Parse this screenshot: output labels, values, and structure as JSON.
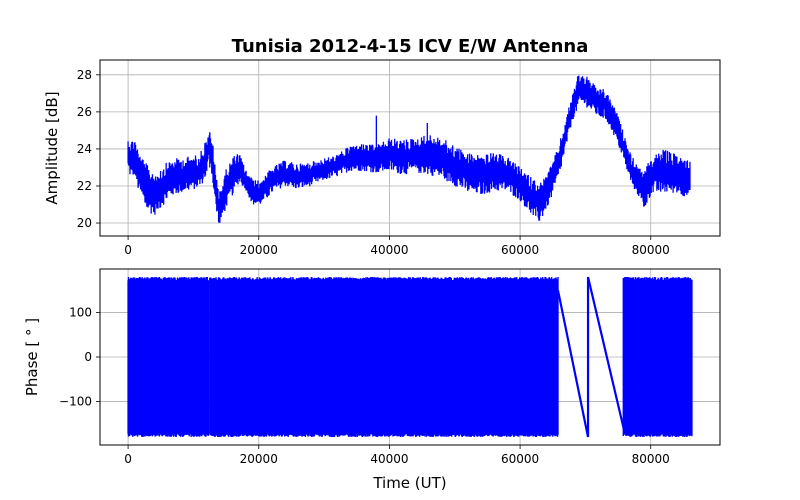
{
  "chart_data": [
    {
      "type": "line",
      "title": "Tunisia 2012-4-15 ICV   E/W Antenna",
      "xlabel": "",
      "ylabel": "Amplitude [dB]",
      "xlim": [
        -4300,
        90600
      ],
      "ylim": [
        19.3,
        28.8
      ],
      "xticks": [
        0,
        20000,
        40000,
        60000,
        80000
      ],
      "yticks": [
        20,
        22,
        24,
        26,
        28
      ],
      "grid": true,
      "color": "#0000ff",
      "series": [
        {
          "x": [
            0,
            500,
            1000,
            1500,
            2000,
            2500,
            3000,
            4000,
            5000,
            6000,
            7000,
            8000,
            9000,
            10000,
            11000,
            12000,
            12500,
            13000,
            13500,
            14000,
            14500,
            15000,
            16000,
            17000,
            18000,
            19000,
            20000,
            21000,
            22000,
            24000,
            26000,
            28000,
            30000,
            32000,
            34000,
            36000,
            38000,
            40000,
            42000,
            44000,
            46000,
            48000,
            50000,
            52000,
            54000,
            56000,
            58000,
            60000,
            62000,
            63000,
            64000,
            65000,
            66000,
            67000,
            68000,
            69000,
            70000,
            71000,
            72000,
            73000,
            74000,
            75000,
            76000,
            77000,
            78000,
            79000,
            80000,
            82000,
            84000,
            86000
          ],
          "low": [
            22.8,
            22.3,
            22.6,
            21.8,
            21.4,
            20.8,
            20.6,
            20.4,
            20.8,
            21.2,
            21.5,
            21.6,
            21.7,
            21.8,
            21.9,
            22.5,
            23.6,
            22.0,
            20.5,
            19.8,
            20.3,
            20.8,
            21.5,
            22.2,
            21.8,
            21.0,
            20.9,
            21.2,
            21.6,
            22.0,
            21.8,
            22.0,
            22.3,
            22.5,
            22.8,
            22.8,
            22.7,
            22.8,
            22.6,
            22.7,
            22.6,
            22.4,
            22.0,
            21.6,
            21.5,
            21.7,
            21.7,
            21.2,
            20.3,
            20.0,
            20.7,
            21.5,
            22.5,
            24.0,
            25.5,
            26.3,
            26.3,
            26.0,
            25.7,
            25.6,
            25.0,
            24.2,
            23.2,
            22.1,
            21.5,
            20.7,
            21.5,
            21.6,
            21.6,
            21.3
          ],
          "high": [
            24.6,
            24.5,
            24.7,
            24.0,
            23.6,
            23.4,
            23.1,
            22.8,
            23.0,
            23.3,
            23.5,
            23.5,
            23.6,
            23.6,
            23.8,
            24.6,
            24.9,
            24.2,
            22.5,
            21.8,
            22.3,
            22.9,
            23.6,
            23.8,
            22.9,
            22.4,
            22.3,
            22.6,
            23.0,
            23.4,
            23.2,
            23.3,
            23.5,
            23.7,
            24.2,
            24.3,
            24.2,
            24.6,
            24.5,
            24.6,
            24.8,
            24.6,
            24.2,
            23.8,
            23.7,
            23.8,
            23.6,
            23.0,
            22.4,
            22.2,
            22.6,
            23.3,
            24.3,
            25.6,
            27.0,
            28.2,
            28.0,
            27.6,
            27.3,
            27.2,
            26.6,
            25.8,
            24.7,
            23.7,
            23.1,
            22.7,
            23.6,
            24.0,
            23.7,
            23.5
          ],
          "spikes": [
            [
              38000,
              22.8,
              25.8
            ],
            [
              45800,
              23.0,
              25.4
            ],
            [
              12500,
              23.0,
              24.9
            ]
          ]
        }
      ]
    },
    {
      "type": "line",
      "title": "",
      "xlabel": "Time (UT)",
      "ylabel": "Phase [ ° ]",
      "xlim": [
        -4300,
        90600
      ],
      "ylim": [
        -198,
        198
      ],
      "xticks": [
        0,
        20000,
        40000,
        60000,
        80000
      ],
      "yticks": [
        -100,
        0,
        100
      ],
      "grid": true,
      "color": "#0000ff",
      "dense_regions": [
        [
          0,
          12300
        ],
        [
          12500,
          65800
        ],
        [
          75800,
          86300
        ]
      ],
      "phase_min": -180,
      "phase_max": 180,
      "sparse_lines": [
        {
          "x": [
            65800,
            70400
          ],
          "y": [
            150,
            -180
          ]
        },
        {
          "x": [
            70400,
            70400
          ],
          "y": [
            -180,
            180
          ]
        },
        {
          "x": [
            70400,
            76000
          ],
          "y": [
            180,
            -170
          ]
        },
        {
          "x": [
            76000,
            76100
          ],
          "y": [
            -170,
            180
          ]
        }
      ]
    }
  ]
}
